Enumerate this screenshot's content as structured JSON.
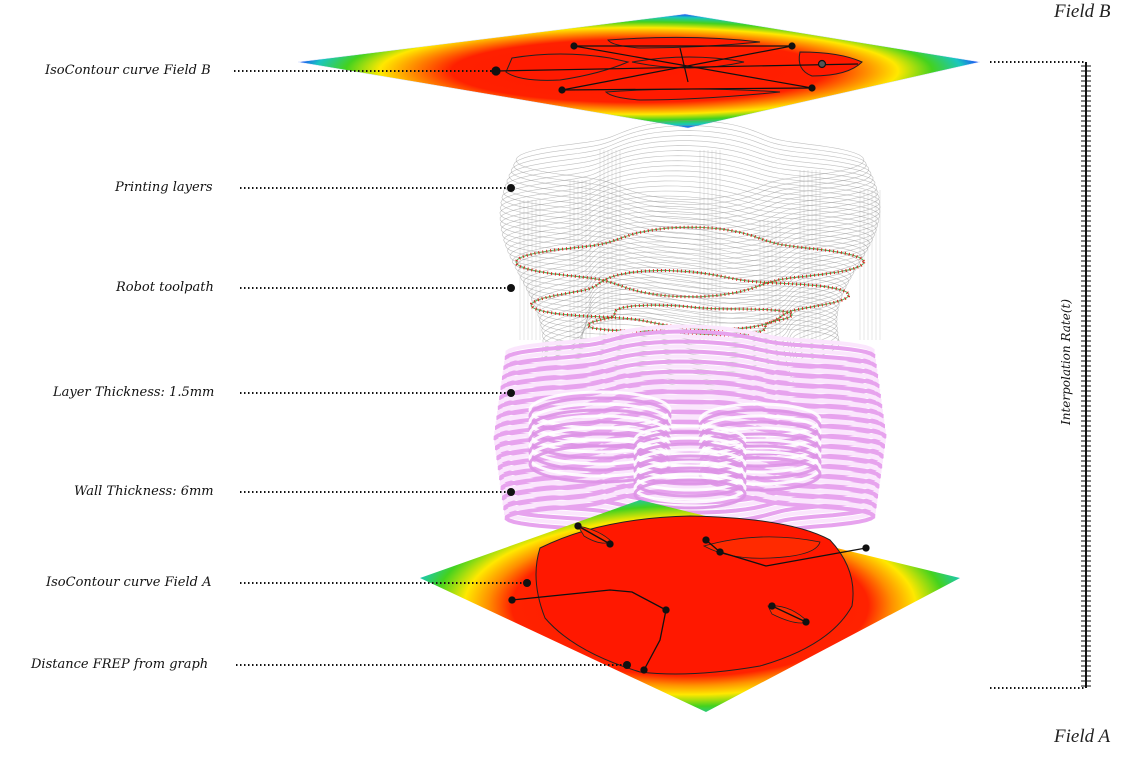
{
  "fields": {
    "top_title": "Field B",
    "bottom_title": "Field A"
  },
  "labels": [
    "IsoContour curve Field B",
    "Printing layers",
    "Robot toolpath",
    "Layer Thickness: 1.5mm",
    "Wall Thickness: 6mm",
    "IsoContour curve Field A",
    "Distance FREP from graph"
  ],
  "axis": {
    "title": "Interpolation Rate(t)"
  },
  "colors": {
    "field_red": "#ff1a00",
    "field_yellow": "#ffe800",
    "field_green": "#44d21e",
    "field_blue": "#1a5cf0",
    "layer_pink": "#f0b8f5",
    "layer_white": "#ffffff",
    "toolpath_red": "#e02020",
    "toolpath_green": "#30a030",
    "wire_gray": "#8c8c8c"
  }
}
